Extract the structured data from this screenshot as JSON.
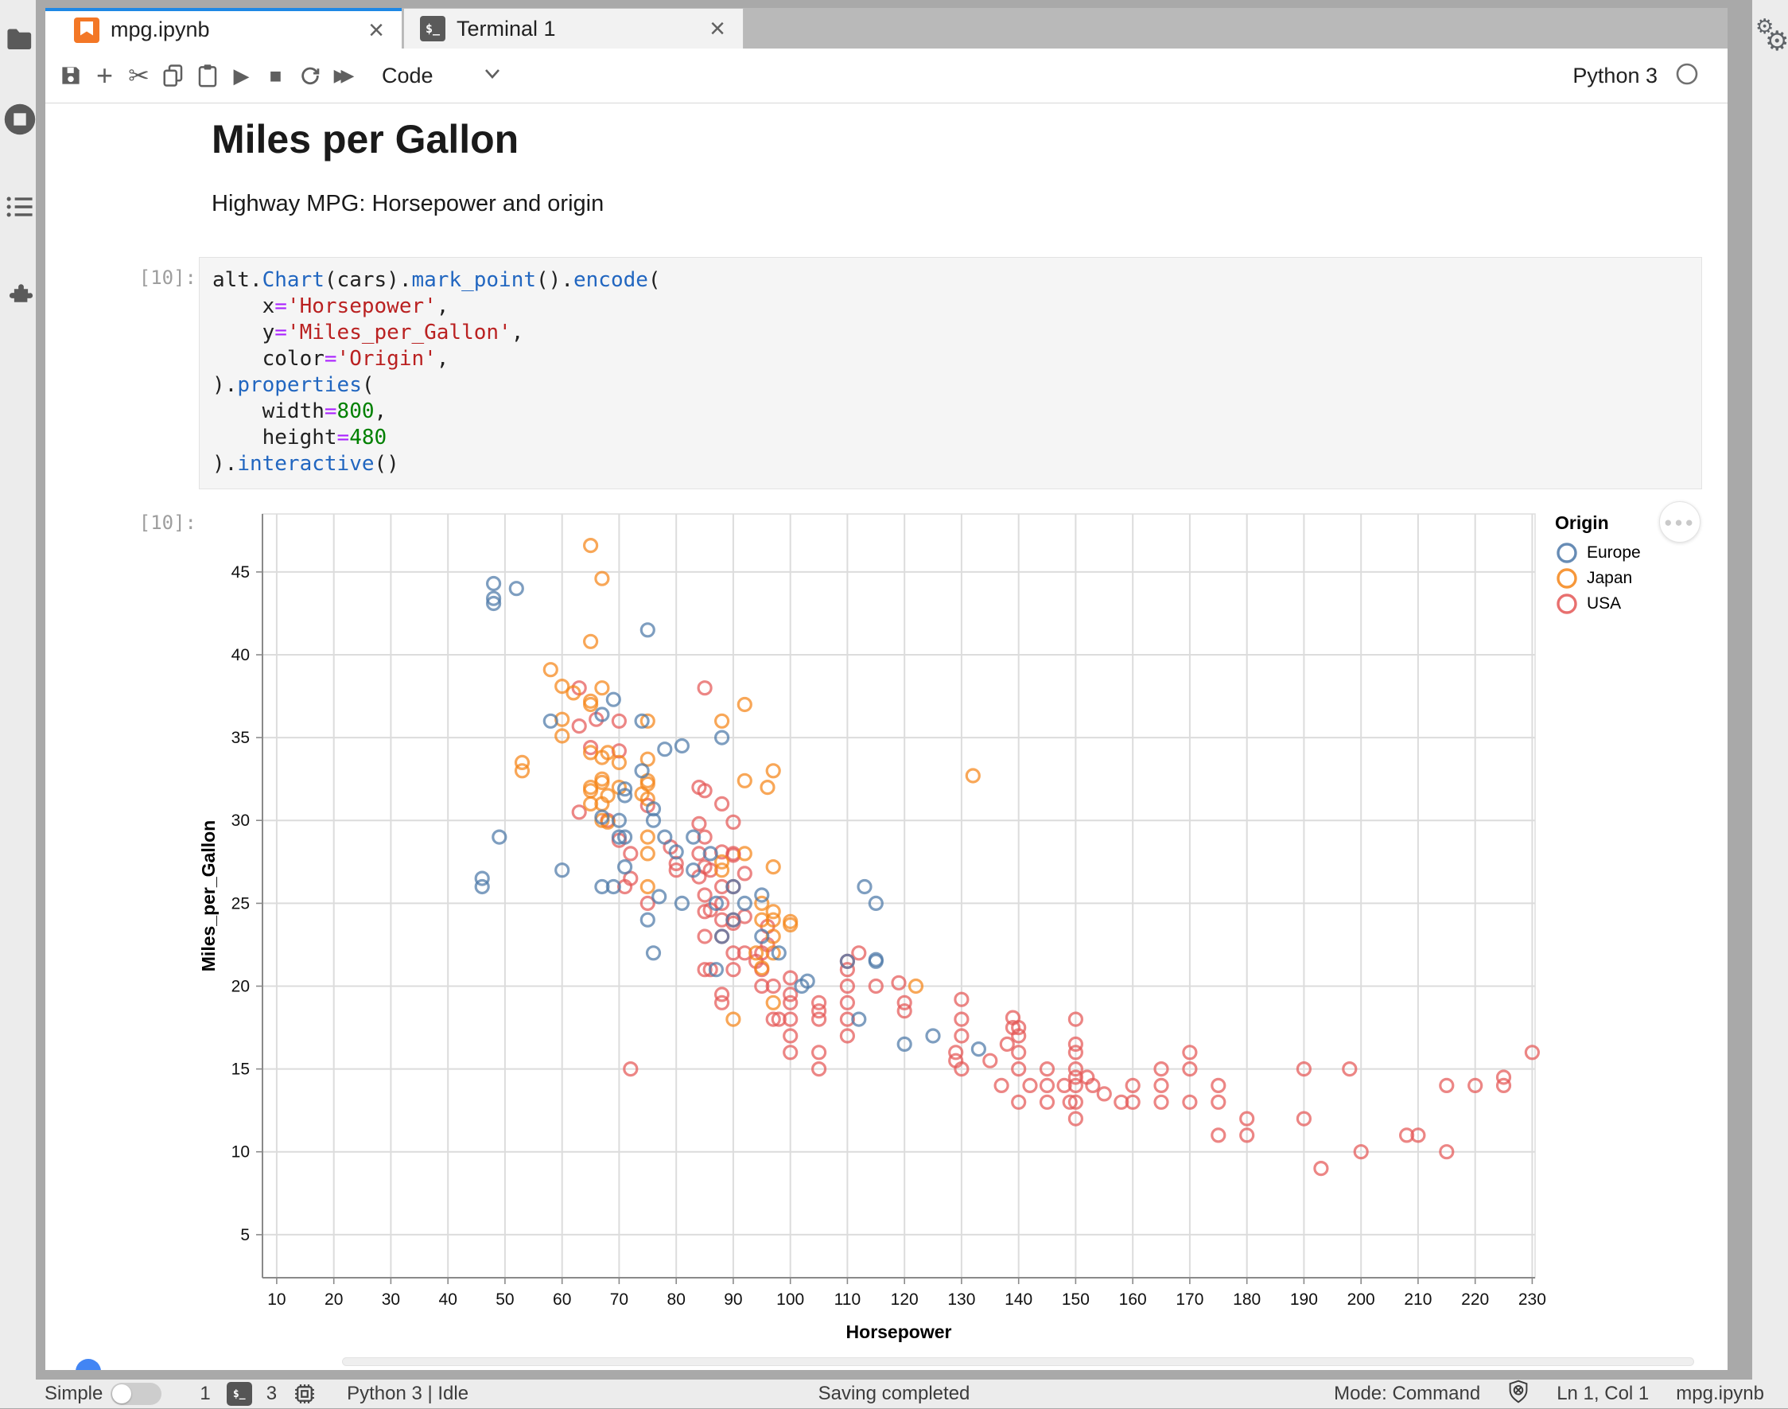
{
  "tabs": {
    "notebook": {
      "label": "mpg.ipynb",
      "close": "×"
    },
    "terminal": {
      "label": "Terminal 1",
      "close": "×",
      "icon_glyph": "$_"
    }
  },
  "toolbar": {
    "cell_type": "Code",
    "kernel_name": "Python 3",
    "icon_glyphs": {
      "cut": "✂",
      "run": "▶",
      "stop": "■",
      "fast_forward": "▶▶",
      "add": "+"
    }
  },
  "markdown": {
    "title": "Miles per Gallon",
    "subtitle": "Highway MPG: Horsepower and origin"
  },
  "code_cell": {
    "prompt": "[10]:",
    "lines": [
      [
        [
          "alt.",
          "p"
        ],
        [
          "Chart",
          "f"
        ],
        [
          "(cars).",
          "p"
        ],
        [
          "mark_point",
          "f"
        ],
        [
          "().",
          "p"
        ],
        [
          "encode",
          "f"
        ],
        [
          "(",
          "p"
        ]
      ],
      [
        [
          "    x",
          "p"
        ],
        [
          "=",
          "o"
        ],
        [
          "'Horsepower'",
          "s"
        ],
        [
          ",",
          "p"
        ]
      ],
      [
        [
          "    y",
          "p"
        ],
        [
          "=",
          "o"
        ],
        [
          "'Miles_per_Gallon'",
          "s"
        ],
        [
          ",",
          "p"
        ]
      ],
      [
        [
          "    color",
          "p"
        ],
        [
          "=",
          "o"
        ],
        [
          "'Origin'",
          "s"
        ],
        [
          ",",
          "p"
        ]
      ],
      [
        [
          ").",
          "p"
        ],
        [
          "properties",
          "f"
        ],
        [
          "(",
          "p"
        ]
      ],
      [
        [
          "    width",
          "p"
        ],
        [
          "=",
          "o"
        ],
        [
          "800",
          "n"
        ],
        [
          ",",
          "p"
        ]
      ],
      [
        [
          "    height",
          "p"
        ],
        [
          "=",
          "o"
        ],
        [
          "480",
          "n"
        ]
      ],
      [
        [
          ").",
          "p"
        ],
        [
          "interactive",
          "f"
        ],
        [
          "()",
          "p"
        ]
      ]
    ]
  },
  "output_cell": {
    "prompt": "[10]:"
  },
  "chart_data": {
    "type": "scatter",
    "xlabel": "Horsepower",
    "ylabel": "Miles_per_Gallon",
    "grid": true,
    "x_ticks": [
      10,
      20,
      30,
      40,
      50,
      60,
      70,
      80,
      90,
      100,
      110,
      120,
      130,
      140,
      150,
      160,
      170,
      180,
      190,
      200,
      210,
      220,
      230
    ],
    "y_ticks": [
      5,
      10,
      15,
      20,
      25,
      30,
      35,
      40,
      45
    ],
    "x_domain": [
      7.5,
      230.5
    ],
    "y_domain": [
      2.4,
      48.5
    ],
    "legend": {
      "title": "Origin",
      "entries": [
        {
          "label": "Europe",
          "color": "#4c78a8"
        },
        {
          "label": "Japan",
          "color": "#f58518"
        },
        {
          "label": "USA",
          "color": "#e45756"
        }
      ]
    },
    "origin_colors": {
      "E": "#4c78a8",
      "J": "#f58518",
      "U": "#e45756"
    },
    "points": [
      [
        130,
        18,
        "U"
      ],
      [
        165,
        15,
        "U"
      ],
      [
        150,
        18,
        "U"
      ],
      [
        150,
        16,
        "U"
      ],
      [
        140,
        17,
        "U"
      ],
      [
        198,
        15,
        "U"
      ],
      [
        220,
        14,
        "U"
      ],
      [
        215,
        14,
        "U"
      ],
      [
        225,
        14,
        "U"
      ],
      [
        190,
        15,
        "U"
      ],
      [
        170,
        15,
        "U"
      ],
      [
        160,
        14,
        "U"
      ],
      [
        150,
        15,
        "U"
      ],
      [
        225,
        14.5,
        "U"
      ],
      [
        95,
        22,
        "U"
      ],
      [
        97,
        18,
        "U"
      ],
      [
        85,
        21,
        "U"
      ],
      [
        90,
        21,
        "U"
      ],
      [
        215,
        10,
        "U"
      ],
      [
        200,
        10,
        "U"
      ],
      [
        210,
        11,
        "U"
      ],
      [
        193,
        9,
        "U"
      ],
      [
        100,
        19,
        "U"
      ],
      [
        105,
        16,
        "U"
      ],
      [
        100,
        17,
        "U"
      ],
      [
        88,
        19,
        "U"
      ],
      [
        100,
        18,
        "U"
      ],
      [
        165,
        14,
        "U"
      ],
      [
        175,
        14,
        "U"
      ],
      [
        153,
        14,
        "U"
      ],
      [
        150,
        14,
        "U"
      ],
      [
        180,
        12,
        "U"
      ],
      [
        170,
        13,
        "U"
      ],
      [
        175,
        13,
        "U"
      ],
      [
        110,
        18,
        "U"
      ],
      [
        90,
        28,
        "U"
      ],
      [
        75,
        25,
        "U"
      ],
      [
        100,
        19.5,
        "U"
      ],
      [
        88,
        19.5,
        "U"
      ],
      [
        86,
        21,
        "U"
      ],
      [
        90,
        22,
        "U"
      ],
      [
        175,
        11,
        "U"
      ],
      [
        150,
        13,
        "U"
      ],
      [
        145,
        13,
        "U"
      ],
      [
        137,
        14,
        "U"
      ],
      [
        150,
        12,
        "U"
      ],
      [
        158,
        13,
        "U"
      ],
      [
        145,
        14,
        "U"
      ],
      [
        230,
        16,
        "U"
      ],
      [
        180,
        11,
        "U"
      ],
      [
        208,
        11,
        "U"
      ],
      [
        155,
        13.5,
        "U"
      ],
      [
        160,
        13,
        "U"
      ],
      [
        190,
        12,
        "U"
      ],
      [
        97,
        20,
        "U"
      ],
      [
        95,
        21,
        "U"
      ],
      [
        105,
        15,
        "U"
      ],
      [
        100,
        16,
        "U"
      ],
      [
        98,
        18,
        "U"
      ],
      [
        110,
        17,
        "U"
      ],
      [
        105,
        18,
        "U"
      ],
      [
        110,
        19,
        "U"
      ],
      [
        120,
        19,
        "U"
      ],
      [
        110,
        20,
        "U"
      ],
      [
        115,
        20,
        "U"
      ],
      [
        110,
        21,
        "U"
      ],
      [
        105,
        18.5,
        "U"
      ],
      [
        100,
        20.5,
        "U"
      ],
      [
        95,
        20,
        "U"
      ],
      [
        105,
        19,
        "U"
      ],
      [
        130,
        17,
        "U"
      ],
      [
        130,
        15,
        "U"
      ],
      [
        140,
        16,
        "U"
      ],
      [
        140,
        15,
        "U"
      ],
      [
        129,
        16,
        "U"
      ],
      [
        138,
        16.5,
        "U"
      ],
      [
        135,
        15.5,
        "U"
      ],
      [
        142,
        14,
        "U"
      ],
      [
        150,
        14.5,
        "U"
      ],
      [
        152,
        14.5,
        "U"
      ],
      [
        170,
        16,
        "U"
      ],
      [
        165,
        13,
        "U"
      ],
      [
        149,
        13,
        "U"
      ],
      [
        148,
        14,
        "U"
      ],
      [
        140,
        13,
        "U"
      ],
      [
        139,
        17.5,
        "U"
      ],
      [
        129,
        15.5,
        "U"
      ],
      [
        139,
        18.1,
        "U"
      ],
      [
        140,
        17.5,
        "U"
      ],
      [
        145,
        15,
        "U"
      ],
      [
        150,
        16.5,
        "U"
      ],
      [
        130,
        19.2,
        "U"
      ],
      [
        120,
        18.5,
        "U"
      ],
      [
        119,
        20.2,
        "U"
      ],
      [
        110,
        21.5,
        "U"
      ],
      [
        90,
        24,
        "U"
      ],
      [
        88,
        24,
        "U"
      ],
      [
        85,
        24.5,
        "U"
      ],
      [
        88,
        25,
        "U"
      ],
      [
        90,
        26,
        "U"
      ],
      [
        84,
        26.6,
        "U"
      ],
      [
        88,
        26,
        "U"
      ],
      [
        80,
        27,
        "U"
      ],
      [
        88,
        23,
        "U"
      ],
      [
        85,
        23,
        "U"
      ],
      [
        92,
        22,
        "U"
      ],
      [
        94,
        21.5,
        "U"
      ],
      [
        96,
        22.5,
        "U"
      ],
      [
        90,
        23.8,
        "U"
      ],
      [
        85,
        25.5,
        "U"
      ],
      [
        72,
        26.5,
        "U"
      ],
      [
        72,
        28,
        "U"
      ],
      [
        68,
        30,
        "U"
      ],
      [
        63,
        30.5,
        "U"
      ],
      [
        70,
        28.8,
        "U"
      ],
      [
        75,
        30.9,
        "U"
      ],
      [
        70,
        34.2,
        "U"
      ],
      [
        63,
        38,
        "U"
      ],
      [
        65,
        34.4,
        "U"
      ],
      [
        70,
        36,
        "U"
      ],
      [
        66,
        36.1,
        "U"
      ],
      [
        80,
        27.4,
        "U"
      ],
      [
        85,
        29,
        "U"
      ],
      [
        88,
        28.1,
        "U"
      ],
      [
        85,
        27.2,
        "U"
      ],
      [
        90,
        29.9,
        "U"
      ],
      [
        88,
        31,
        "U"
      ],
      [
        85,
        31.8,
        "U"
      ],
      [
        92,
        26.8,
        "U"
      ],
      [
        84,
        29.8,
        "U"
      ],
      [
        63,
        35.7,
        "U"
      ],
      [
        86,
        24.6,
        "U"
      ],
      [
        86,
        27,
        "U"
      ],
      [
        79,
        28.4,
        "U"
      ],
      [
        71,
        26,
        "U"
      ],
      [
        84,
        32,
        "U"
      ],
      [
        84,
        28,
        "U"
      ],
      [
        92,
        24.2,
        "U"
      ],
      [
        112,
        22,
        "U"
      ],
      [
        96,
        23.6,
        "U"
      ],
      [
        90,
        27.9,
        "U"
      ],
      [
        85,
        38,
        "U"
      ],
      [
        72,
        15,
        "U"
      ],
      [
        95,
        24,
        "J"
      ],
      [
        88,
        27,
        "J"
      ],
      [
        88,
        27.5,
        "J"
      ],
      [
        95,
        25,
        "J"
      ],
      [
        97,
        24,
        "J"
      ],
      [
        97,
        19,
        "J"
      ],
      [
        92,
        28,
        "J"
      ],
      [
        94,
        22,
        "J"
      ],
      [
        90,
        18,
        "J"
      ],
      [
        65,
        31,
        "J"
      ],
      [
        67,
        31,
        "J"
      ],
      [
        65,
        32,
        "J"
      ],
      [
        97,
        23,
        "J"
      ],
      [
        122,
        20,
        "J"
      ],
      [
        67,
        32.5,
        "J"
      ],
      [
        75,
        29,
        "J"
      ],
      [
        53,
        33,
        "J"
      ],
      [
        75,
        28,
        "J"
      ],
      [
        97,
        24.5,
        "J"
      ],
      [
        70,
        32,
        "J"
      ],
      [
        53,
        33.5,
        "J"
      ],
      [
        68,
        31.5,
        "J"
      ],
      [
        75,
        26,
        "J"
      ],
      [
        70,
        33.5,
        "J"
      ],
      [
        97,
        22,
        "J"
      ],
      [
        95,
        21.1,
        "J"
      ],
      [
        97,
        27.2,
        "J"
      ],
      [
        65,
        31.8,
        "J"
      ],
      [
        60,
        38.1,
        "J"
      ],
      [
        65,
        37.2,
        "J"
      ],
      [
        75,
        32.2,
        "J"
      ],
      [
        60,
        36.1,
        "J"
      ],
      [
        68,
        29.9,
        "J"
      ],
      [
        65,
        34.1,
        "J"
      ],
      [
        65,
        46.6,
        "J"
      ],
      [
        132,
        32.7,
        "J"
      ],
      [
        100,
        23.7,
        "J"
      ],
      [
        60,
        35.1,
        "J"
      ],
      [
        67,
        33.8,
        "J"
      ],
      [
        67,
        32.3,
        "J"
      ],
      [
        67,
        30,
        "J"
      ],
      [
        92,
        37,
        "J"
      ],
      [
        75,
        32.4,
        "J"
      ],
      [
        75,
        31.3,
        "J"
      ],
      [
        74,
        31.6,
        "J"
      ],
      [
        65,
        37,
        "J"
      ],
      [
        58,
        39.1,
        "J"
      ],
      [
        67,
        44.6,
        "J"
      ],
      [
        65,
        40.8,
        "J"
      ],
      [
        62,
        37.7,
        "J"
      ],
      [
        68,
        34.1,
        "J"
      ],
      [
        75,
        33.7,
        "J"
      ],
      [
        100,
        23.9,
        "J"
      ],
      [
        88,
        36,
        "J"
      ],
      [
        75,
        36,
        "J"
      ],
      [
        92,
        32.4,
        "J"
      ],
      [
        67,
        38,
        "J"
      ],
      [
        96,
        32,
        "J"
      ],
      [
        97,
        33,
        "J"
      ],
      [
        46,
        26,
        "E"
      ],
      [
        87,
        25,
        "E"
      ],
      [
        90,
        24,
        "E"
      ],
      [
        95,
        25.5,
        "E"
      ],
      [
        113,
        26,
        "E"
      ],
      [
        60,
        27,
        "E"
      ],
      [
        70,
        30,
        "E"
      ],
      [
        76,
        30,
        "E"
      ],
      [
        46,
        26.5,
        "E"
      ],
      [
        90,
        26,
        "E"
      ],
      [
        49,
        29,
        "E"
      ],
      [
        69,
        26,
        "E"
      ],
      [
        87,
        21,
        "E"
      ],
      [
        112,
        18,
        "E"
      ],
      [
        76,
        22,
        "E"
      ],
      [
        83,
        29,
        "E"
      ],
      [
        67,
        26,
        "E"
      ],
      [
        75,
        24,
        "E"
      ],
      [
        70,
        29,
        "E"
      ],
      [
        95,
        23,
        "E"
      ],
      [
        88,
        23,
        "E"
      ],
      [
        98,
        22,
        "E"
      ],
      [
        115,
        25,
        "E"
      ],
      [
        86,
        28,
        "E"
      ],
      [
        81,
        25,
        "E"
      ],
      [
        92,
        25,
        "E"
      ],
      [
        83,
        27,
        "E"
      ],
      [
        71,
        29,
        "E"
      ],
      [
        120,
        16.5,
        "E"
      ],
      [
        133,
        16.2,
        "E"
      ],
      [
        125,
        17,
        "E"
      ],
      [
        115,
        21.5,
        "E"
      ],
      [
        110,
        21.5,
        "E"
      ],
      [
        78,
        29,
        "E"
      ],
      [
        58,
        36,
        "E"
      ],
      [
        48,
        43.1,
        "E"
      ],
      [
        103,
        20.3,
        "E"
      ],
      [
        115,
        21.6,
        "E"
      ],
      [
        71,
        27.2,
        "E"
      ],
      [
        71,
        31.9,
        "E"
      ],
      [
        48,
        43.4,
        "E"
      ],
      [
        48,
        44.3,
        "E"
      ],
      [
        78,
        34.3,
        "E"
      ],
      [
        69,
        37.3,
        "E"
      ],
      [
        80,
        28.1,
        "E"
      ],
      [
        76,
        30.7,
        "E"
      ],
      [
        67,
        30.2,
        "E"
      ],
      [
        77,
        25.4,
        "E"
      ],
      [
        67,
        36.4,
        "E"
      ],
      [
        74,
        36,
        "E"
      ],
      [
        74,
        33,
        "E"
      ],
      [
        71,
        31.5,
        "E"
      ],
      [
        52,
        44,
        "E"
      ],
      [
        102,
        20,
        "E"
      ],
      [
        81,
        34.5,
        "E"
      ],
      [
        88,
        35,
        "E"
      ],
      [
        75,
        41.5,
        "E"
      ]
    ]
  },
  "statusbar": {
    "simple_label": "Simple",
    "terminals_count": "1",
    "kernels_count": "3",
    "kernel_status": "Python 3 | Idle",
    "message": "Saving completed",
    "mode": "Mode: Command",
    "cursor_position": "Ln 1, Col 1",
    "filename": "mpg.ipynb"
  },
  "sidebar": {
    "items": [
      "file-browser",
      "running-sessions",
      "table-of-contents",
      "extensions"
    ]
  }
}
